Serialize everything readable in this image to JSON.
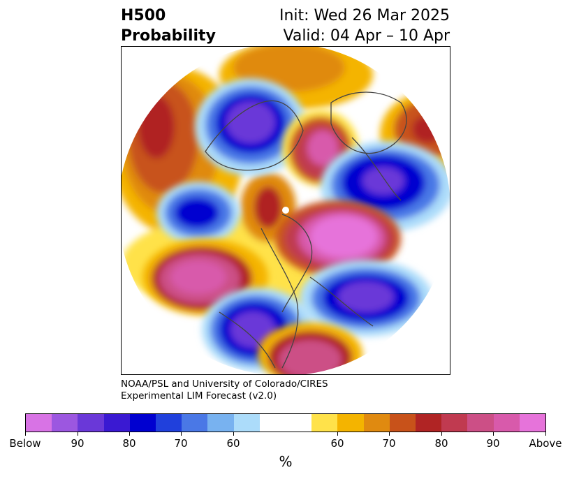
{
  "header": {
    "title_line1": "H500",
    "title_line2": "Probability",
    "init_text": "Init: Wed 26 Mar 2025",
    "valid_text": "Valid: 04 Apr – 10 Apr"
  },
  "credits": {
    "line1": "NOAA/PSL and University of Colorado/CIRES",
    "line2": "Experimental LIM Forecast (v2.0)"
  },
  "colorbar": {
    "colors": [
      "#d873e5",
      "#9c57e0",
      "#6a38d8",
      "#3a19d2",
      "#0000d0",
      "#2040dc",
      "#4a78e6",
      "#78b2f0",
      "#acdcfa",
      "#ffffff",
      "#ffe24a",
      "#f4b400",
      "#e08a10",
      "#c8521a",
      "#b02424",
      "#c03a50",
      "#cc4f86",
      "#d85aab",
      "#e673da"
    ],
    "tick_labels": [
      "Below",
      "90",
      "80",
      "70",
      "60",
      "60",
      "70",
      "80",
      "90",
      "Above"
    ],
    "unit": "%"
  },
  "map": {
    "projection": "north-polar-stereographic",
    "variable": "H500 probability"
  }
}
